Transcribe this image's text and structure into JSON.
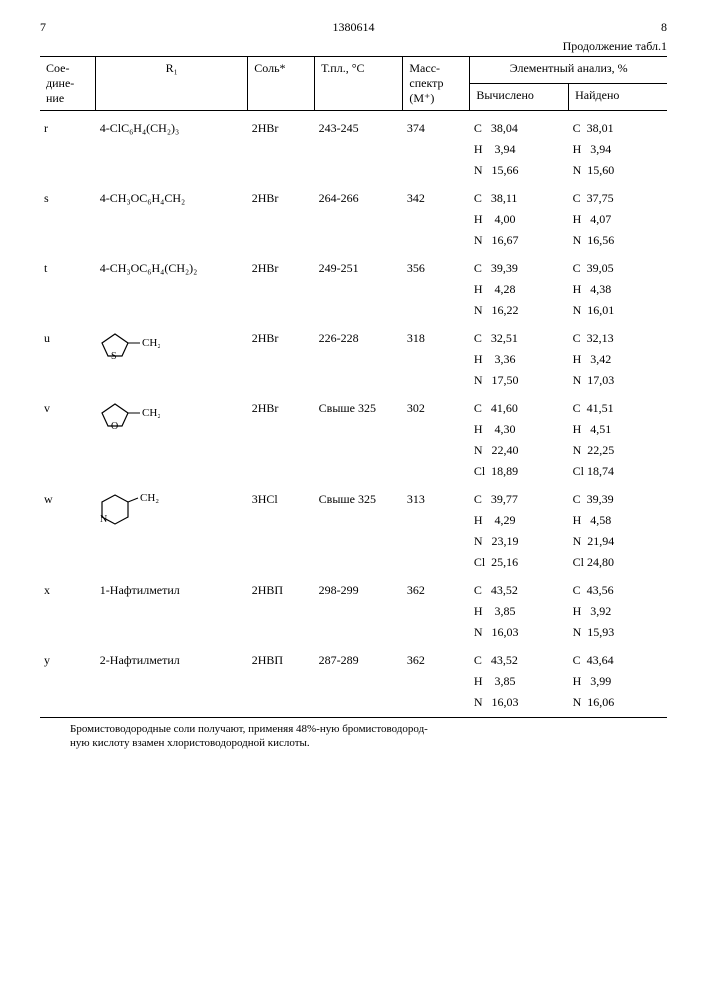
{
  "header": {
    "left_num": "7",
    "center_num": "1380614",
    "right_num": "8",
    "continuation": "Продолжение табл.1"
  },
  "columns": {
    "compound": "Сое-\nдине-\nние",
    "r1": "R₁",
    "salt": "Соль*",
    "mp": "Т.пл., °С",
    "mass": "Масс-\nспектр\n(M⁺)",
    "elem_title": "Элементный анализ, %",
    "calc": "Вычислено",
    "found": "Найдено"
  },
  "rows": [
    {
      "id": "r",
      "r1_text": "4-ClC₆H₄(CH₂)₃",
      "salt": "2HBr",
      "mp": "243-245",
      "mass": "374",
      "elems": [
        {
          "el": "C",
          "calc": "38,04",
          "found": "38,01"
        },
        {
          "el": "H",
          "calc": "3,94",
          "found": "3,94"
        },
        {
          "el": "N",
          "calc": "15,66",
          "found": "15,60"
        }
      ]
    },
    {
      "id": "s",
      "r1_text": "4-CH₃OC₆H₄CH₂",
      "salt": "2HBr",
      "mp": "264-266",
      "mass": "342",
      "elems": [
        {
          "el": "C",
          "calc": "38,11",
          "found": "37,75"
        },
        {
          "el": "H",
          "calc": "4,00",
          "found": "4,07"
        },
        {
          "el": "N",
          "calc": "16,67",
          "found": "16,56"
        }
      ]
    },
    {
      "id": "t",
      "r1_text": "4-CH₃OC₆H₄(CH₂)₂",
      "salt": "2HBr",
      "mp": "249-251",
      "mass": "356",
      "elems": [
        {
          "el": "C",
          "calc": "39,39",
          "found": "39,05"
        },
        {
          "el": "H",
          "calc": "4,28",
          "found": "4,38"
        },
        {
          "el": "N",
          "calc": "16,22",
          "found": "16,01"
        }
      ]
    },
    {
      "id": "u",
      "r1_svg": "thiophene",
      "r1_suffix": "— CH₂",
      "salt": "2HBr",
      "mp": "226-228",
      "mass": "318",
      "elems": [
        {
          "el": "C",
          "calc": "32,51",
          "found": "32,13"
        },
        {
          "el": "H",
          "calc": "3,36",
          "found": "3,42"
        },
        {
          "el": "N",
          "calc": "17,50",
          "found": "17,03"
        }
      ]
    },
    {
      "id": "v",
      "r1_svg": "furan",
      "r1_suffix": "— CH₂",
      "salt": "2HBr",
      "mp": "Свыше 325",
      "mass": "302",
      "elems": [
        {
          "el": "C",
          "calc": "41,60",
          "found": "41,51"
        },
        {
          "el": "H",
          "calc": "4,30",
          "found": "4,51"
        },
        {
          "el": "N",
          "calc": "22,40",
          "found": "22,25"
        },
        {
          "el": "Cl",
          "calc": "18,89",
          "found": "18,74"
        }
      ]
    },
    {
      "id": "w",
      "r1_svg": "pyridine",
      "r1_suffix": "CH₂",
      "salt": "3HCl",
      "mp": "Свыше 325",
      "mass": "313",
      "elems": [
        {
          "el": "C",
          "calc": "39,77",
          "found": "39,39"
        },
        {
          "el": "H",
          "calc": "4,29",
          "found": "4,58"
        },
        {
          "el": "N",
          "calc": "23,19",
          "found": "21,94"
        },
        {
          "el": "Cl",
          "calc": "25,16",
          "found": "24,80"
        }
      ]
    },
    {
      "id": "x",
      "r1_text": "1-Нафтилметил",
      "salt": "2HBП",
      "mp": "298-299",
      "mass": "362",
      "elems": [
        {
          "el": "C",
          "calc": "43,52",
          "found": "43,56"
        },
        {
          "el": "H",
          "calc": "3,85",
          "found": "3,92"
        },
        {
          "el": "N",
          "calc": "16,03",
          "found": "15,93"
        }
      ]
    },
    {
      "id": "y",
      "r1_text": "2-Нафтилметил",
      "salt": "2HBП",
      "mp": "287-289",
      "mass": "362",
      "elems": [
        {
          "el": "C",
          "calc": "43,52",
          "found": "43,64"
        },
        {
          "el": "H",
          "calc": "3,85",
          "found": "3,99"
        },
        {
          "el": "N",
          "calc": "16,03",
          "found": "16,06"
        }
      ]
    }
  ],
  "footnote": "Бромистоводородные соли получают, применяя 48%-ную бромистоводород-\nную кислоту взамен хлористоводородной кислоты."
}
